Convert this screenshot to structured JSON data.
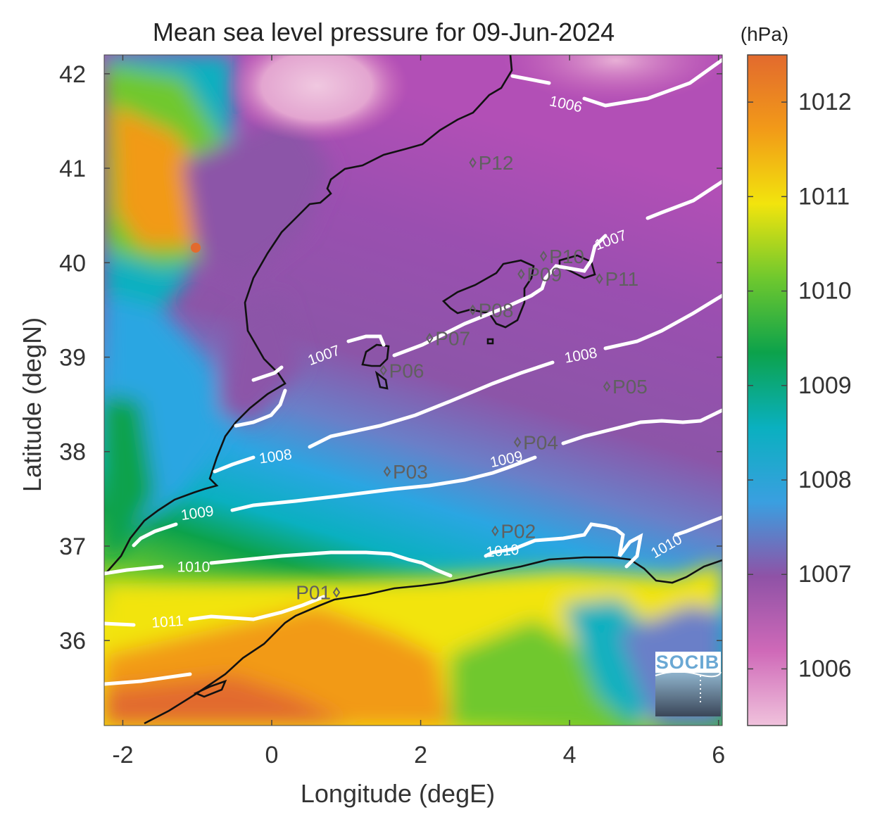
{
  "map": {
    "title": "Mean sea level pressure for 09-Jun-2024",
    "xlabel": "Longitude (degE)",
    "ylabel": "Latitude (degN)",
    "xlim": [
      -2.25,
      6.05
    ],
    "ylim": [
      35.1,
      42.2
    ],
    "xticks": [
      {
        "value": -2,
        "label": "-2"
      },
      {
        "value": 0,
        "label": "0"
      },
      {
        "value": 2,
        "label": "2"
      },
      {
        "value": 4,
        "label": "4"
      },
      {
        "value": 6,
        "label": "6"
      }
    ],
    "yticks": [
      {
        "value": 36,
        "label": "36"
      },
      {
        "value": 37,
        "label": "37"
      },
      {
        "value": 38,
        "label": "38"
      },
      {
        "value": 39,
        "label": "39"
      },
      {
        "value": 40,
        "label": "40"
      },
      {
        "value": 41,
        "label": "41"
      },
      {
        "value": 42,
        "label": "42"
      }
    ],
    "colorbar": {
      "unit": "(hPa)",
      "range": [
        1005.4,
        1012.5
      ],
      "ticks": [
        {
          "value": 1006,
          "label": "1006"
        },
        {
          "value": 1007,
          "label": "1007"
        },
        {
          "value": 1008,
          "label": "1008"
        },
        {
          "value": 1009,
          "label": "1009"
        },
        {
          "value": 1010,
          "label": "1010"
        },
        {
          "value": 1011,
          "label": "1011"
        },
        {
          "value": 1012,
          "label": "1012"
        }
      ],
      "colors": [
        "#f0c2dc",
        "#cf69b8",
        "#8f52a6",
        "#3a9fe0",
        "#0ab0c0",
        "#0ca24b",
        "#6fc82e",
        "#f2e40d",
        "#f29a18",
        "#e26a2e"
      ]
    },
    "contour_labels": [
      {
        "text": "1006",
        "lon": 3.95,
        "lat": 41.68,
        "rot": 12
      },
      {
        "text": "1007",
        "lon": 4.55,
        "lat": 40.24,
        "rot": -20
      },
      {
        "text": "1007",
        "lon": 0.7,
        "lat": 39.02,
        "rot": -20
      },
      {
        "text": "1008",
        "lon": 4.15,
        "lat": 39.02,
        "rot": -10
      },
      {
        "text": "1008",
        "lon": 0.05,
        "lat": 37.95,
        "rot": -8
      },
      {
        "text": "1009",
        "lon": 3.15,
        "lat": 37.92,
        "rot": -12
      },
      {
        "text": "1009",
        "lon": -1.0,
        "lat": 37.35,
        "rot": -8
      },
      {
        "text": "1010",
        "lon": 3.1,
        "lat": 36.95,
        "rot": -5
      },
      {
        "text": "1010",
        "lon": 5.3,
        "lat": 37.0,
        "rot": -30
      },
      {
        "text": "1010",
        "lon": -1.05,
        "lat": 36.78,
        "rot": 0
      },
      {
        "text": "1011",
        "lon": -1.4,
        "lat": 36.2,
        "rot": -4
      }
    ],
    "stations": [
      {
        "name": "P01",
        "lon": 0.87,
        "lat": 36.51,
        "label_side": "left"
      },
      {
        "name": "P02",
        "lon": 3.0,
        "lat": 37.16,
        "label_side": "right"
      },
      {
        "name": "P03",
        "lon": 1.55,
        "lat": 37.79,
        "label_side": "right"
      },
      {
        "name": "P04",
        "lon": 3.3,
        "lat": 38.1,
        "label_side": "right"
      },
      {
        "name": "P05",
        "lon": 4.5,
        "lat": 38.69,
        "label_side": "right"
      },
      {
        "name": "P06",
        "lon": 1.5,
        "lat": 38.86,
        "label_side": "right"
      },
      {
        "name": "P07",
        "lon": 2.12,
        "lat": 39.2,
        "label_side": "right"
      },
      {
        "name": "P08",
        "lon": 2.7,
        "lat": 39.5,
        "label_side": "right"
      },
      {
        "name": "P09",
        "lon": 3.35,
        "lat": 39.88,
        "label_side": "right"
      },
      {
        "name": "P10",
        "lon": 3.65,
        "lat": 40.07,
        "label_side": "right"
      },
      {
        "name": "P11",
        "lon": 4.4,
        "lat": 39.83,
        "label_side": "right"
      },
      {
        "name": "P12",
        "lon": 2.7,
        "lat": 41.06,
        "label_side": "right"
      }
    ],
    "logo": "SOCIB"
  }
}
